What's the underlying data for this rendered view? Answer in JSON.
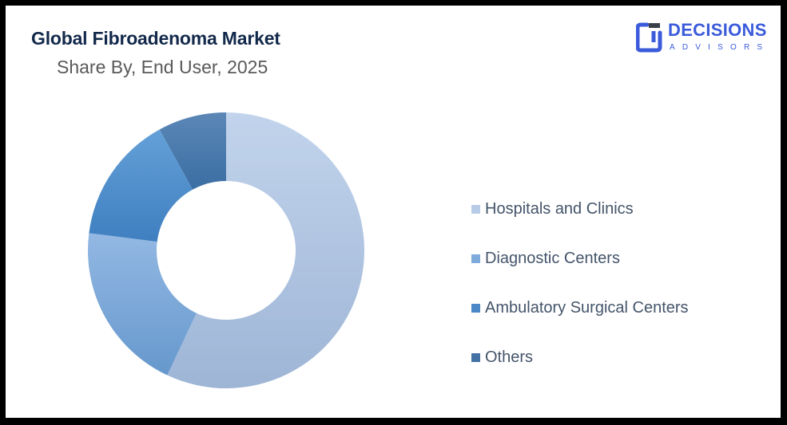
{
  "header": {
    "title": "Global Fibroadenoma Market",
    "subtitle": "Share By, End User, 2025"
  },
  "logo": {
    "name": "DECISIONS",
    "tagline": "ADVISORS",
    "color": "#3b5bdb"
  },
  "chart_data": {
    "type": "pie",
    "variant": "donut",
    "title": "Global Fibroadenoma Market",
    "subtitle": "Share By, End User, 2025",
    "categories": [
      "Hospitals and Clinics",
      "Diagnostic Centers",
      "Ambulatory Surgical Centers",
      "Others"
    ],
    "values": [
      57,
      20,
      15,
      8
    ],
    "unit": "%",
    "colors": [
      "#b4c9e6",
      "#7fa9dc",
      "#4a88c8",
      "#4472a4"
    ],
    "legend_position": "right",
    "start_angle": 0,
    "direction": "clockwise"
  },
  "legend": {
    "items": [
      {
        "label": "Hospitals and Clinics",
        "color": "#b4c9e6"
      },
      {
        "label": "Diagnostic Centers",
        "color": "#7fa9dc"
      },
      {
        "label": "Ambulatory Surgical Centers",
        "color": "#4a88c8"
      },
      {
        "label": "Others",
        "color": "#4472a4"
      }
    ]
  }
}
